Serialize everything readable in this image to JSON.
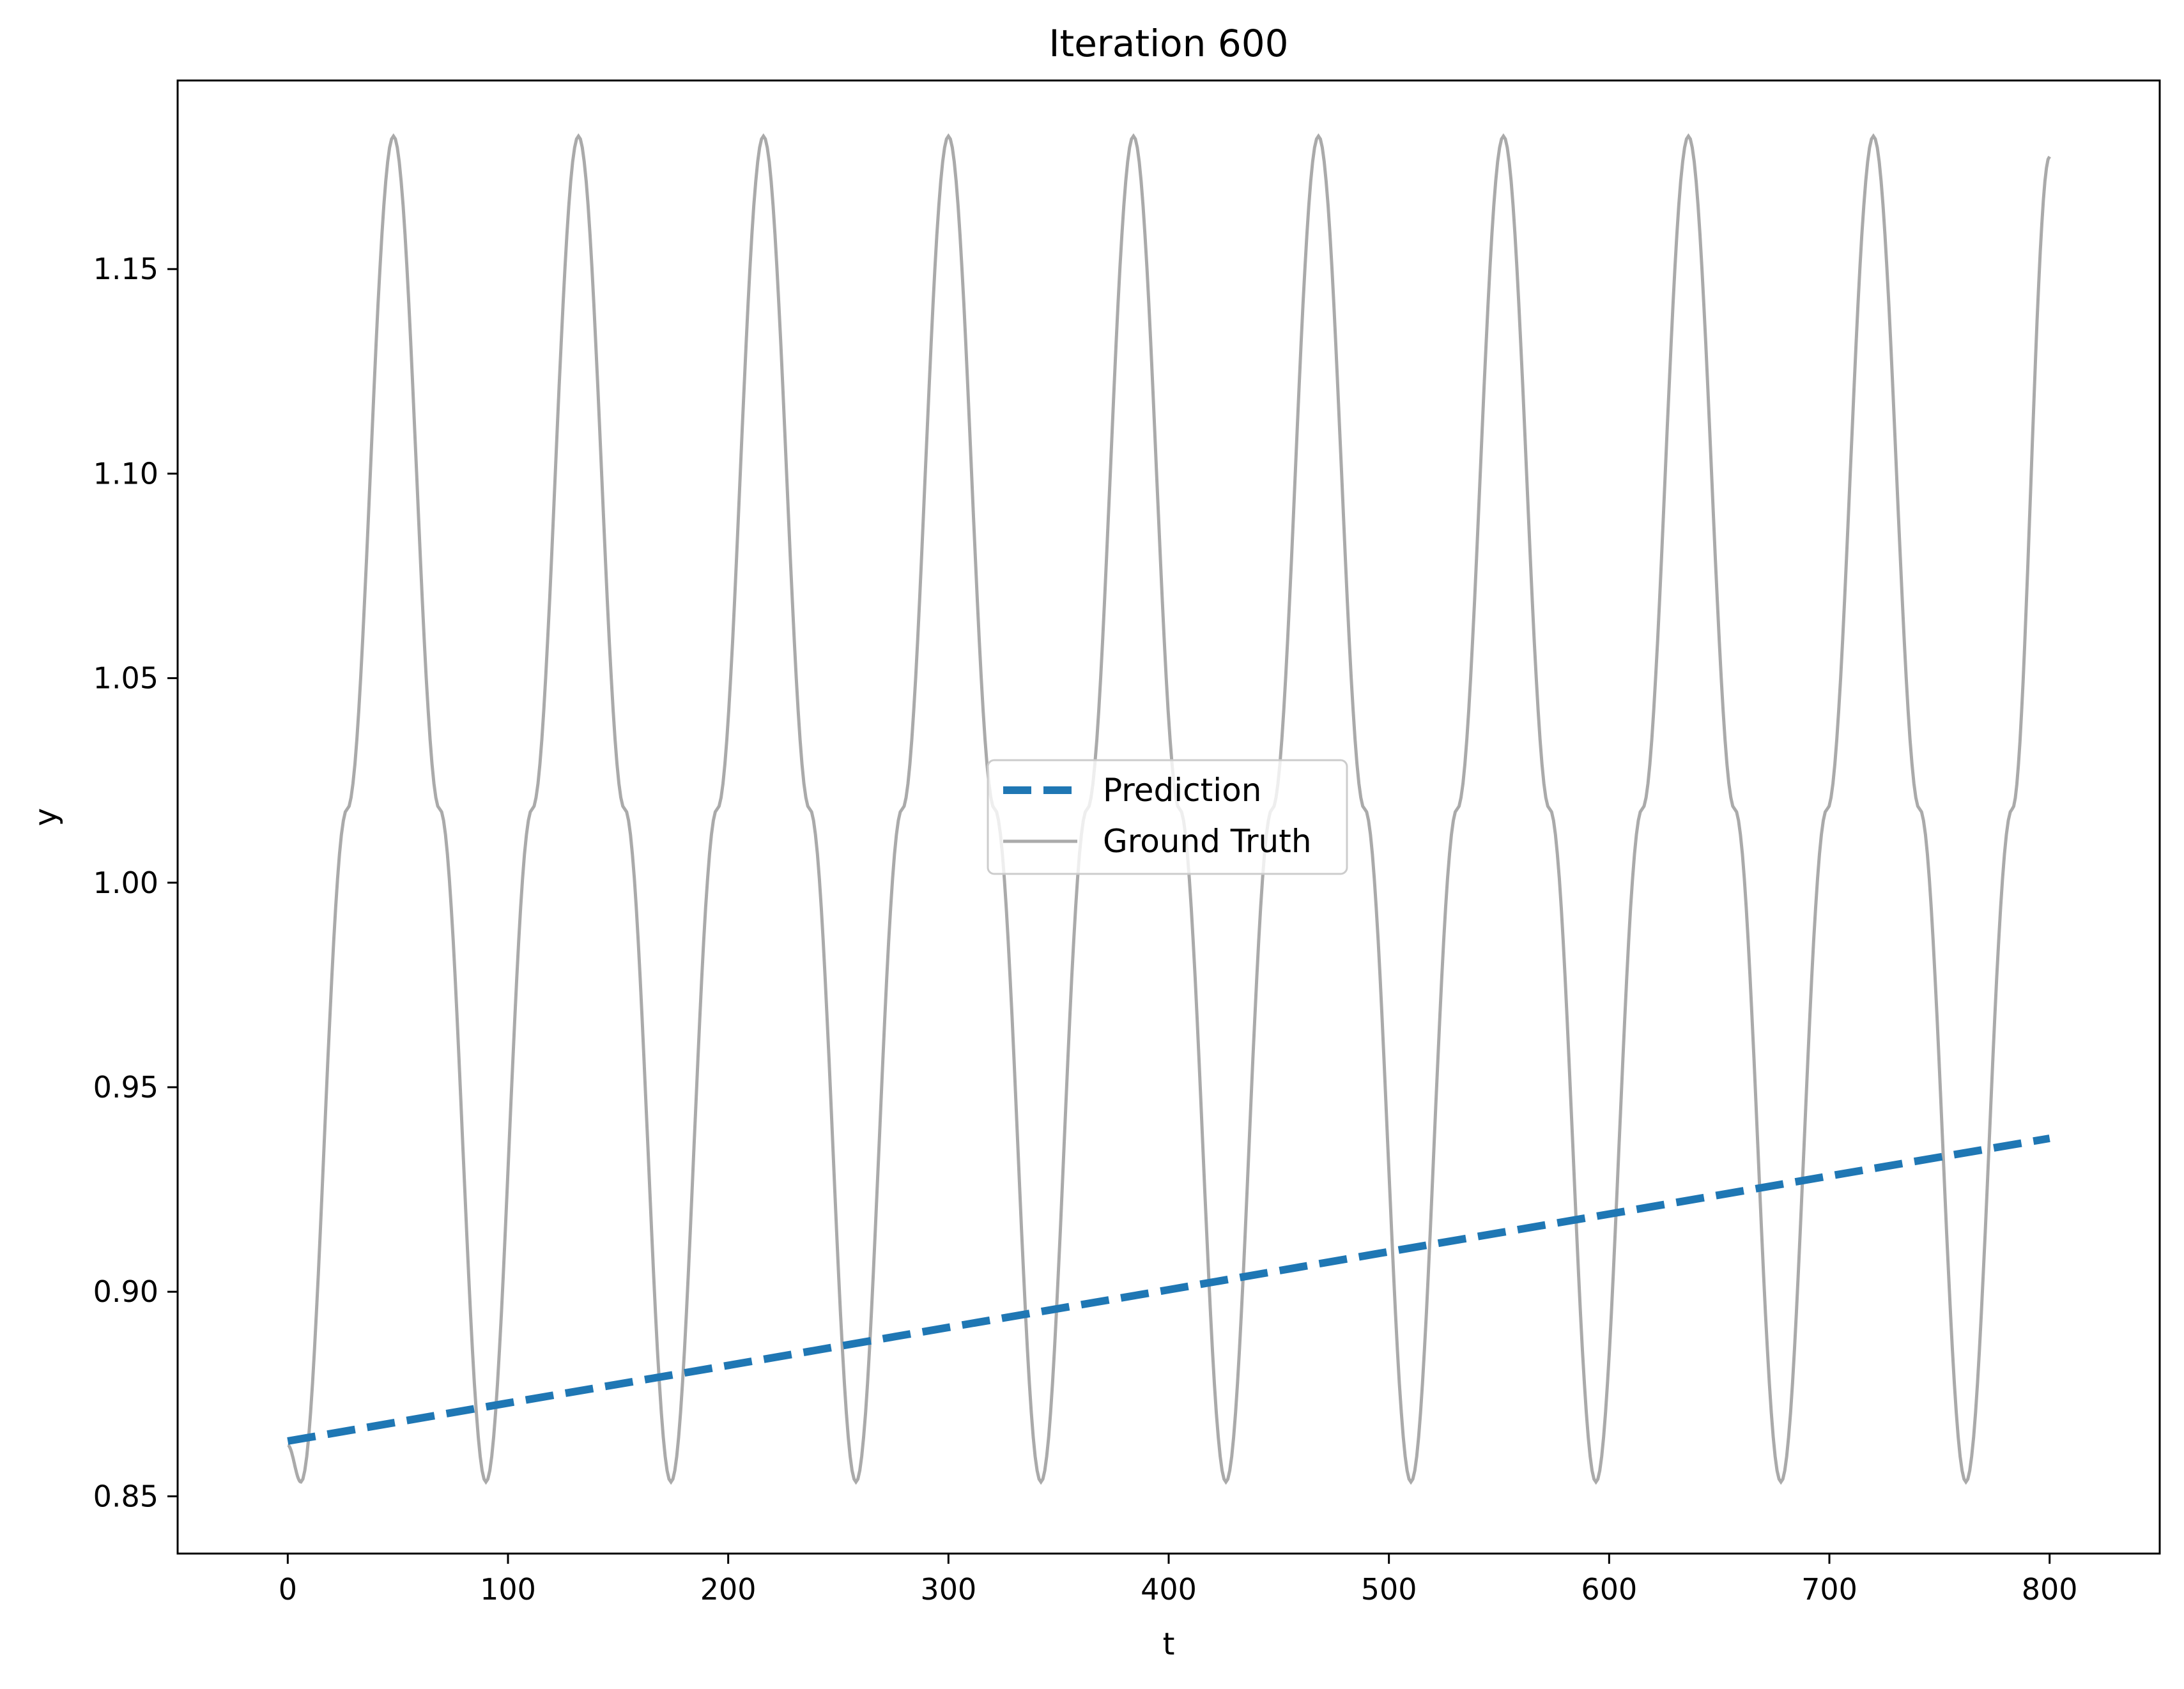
{
  "chart_data": {
    "type": "line",
    "title": "Iteration 600",
    "xlabel": "t",
    "ylabel": "y",
    "xlim": [
      -50,
      850
    ],
    "ylim": [
      0.836,
      1.1961
    ],
    "xticks": [
      0,
      100,
      200,
      300,
      400,
      500,
      600,
      700,
      800
    ],
    "xtick_labels": [
      "0",
      "100",
      "200",
      "300",
      "400",
      "500",
      "600",
      "700",
      "800"
    ],
    "yticks": [
      0.85,
      0.9,
      0.95,
      1.0,
      1.05,
      1.1,
      1.15
    ],
    "ytick_labels": [
      "0.85",
      "0.90",
      "0.95",
      "1.00",
      "1.05",
      "1.10",
      "1.15"
    ],
    "grid": false,
    "legend_position": "center",
    "series": [
      {
        "name": "Prediction",
        "style": "dashed",
        "color": "#1f77b4",
        "x": [
          0,
          100,
          200,
          300,
          400,
          500,
          600,
          700,
          800
        ],
        "y": [
          0.8635,
          0.8728,
          0.882,
          0.8913,
          0.9005,
          0.9098,
          0.919,
          0.9283,
          0.9375
        ]
      },
      {
        "name": "Ground Truth",
        "style": "solid",
        "color": "#aaaaaa",
        "x": [
          0,
          6,
          27,
          48,
          69,
          90,
          111,
          132,
          153,
          174,
          195,
          216,
          237,
          258,
          279,
          300,
          321,
          342,
          363,
          384,
          405,
          426,
          447,
          468,
          489,
          510,
          531,
          552,
          573,
          594,
          615,
          636,
          657,
          678,
          699,
          720,
          741,
          762,
          783,
          800
        ],
        "y": [
          0.8625,
          0.8535,
          1.018,
          1.1825,
          1.018,
          0.8535,
          1.018,
          1.1825,
          1.018,
          0.8535,
          1.018,
          1.1825,
          1.018,
          0.8535,
          1.018,
          1.1825,
          1.018,
          0.8535,
          1.018,
          1.1825,
          1.018,
          0.8535,
          1.018,
          1.1825,
          1.018,
          0.8535,
          1.018,
          1.1825,
          1.018,
          0.8535,
          1.018,
          1.1825,
          1.018,
          0.8535,
          1.018,
          1.1825,
          1.018,
          0.8535,
          1.018,
          1.1775
        ]
      }
    ]
  }
}
